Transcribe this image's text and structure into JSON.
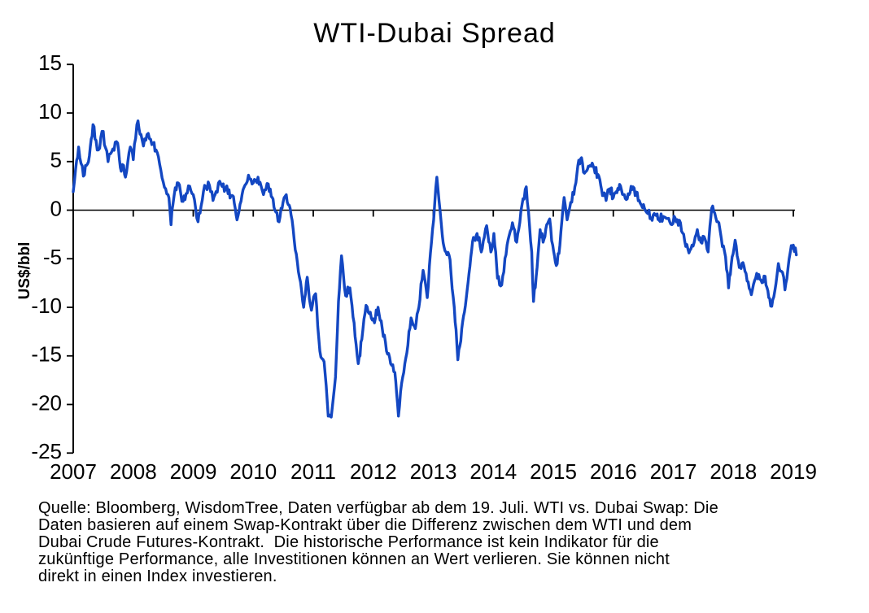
{
  "page": {
    "background": "#ffffff",
    "text_color": "#000000"
  },
  "chart_data": {
    "type": "line",
    "title": "WTI-Dubai Spread",
    "ylabel": "US$/bbl",
    "xlabel": "",
    "ylim": [
      -25,
      15
    ],
    "xlim": [
      2007,
      2019.1
    ],
    "y_ticks": [
      15,
      10,
      5,
      0,
      -5,
      -10,
      -15,
      -20,
      -25
    ],
    "x_ticks": [
      2007,
      2008,
      2009,
      2010,
      2011,
      2012,
      2013,
      2014,
      2015,
      2016,
      2017,
      2018,
      2019
    ],
    "grid": false,
    "legend": "none",
    "axis_color": "#000000",
    "series": [
      {
        "name": "WTI-Dubai Spread (US$/bbl)",
        "color": "#1347C2",
        "x": [
          2007.0,
          2007.04,
          2007.09,
          2007.13,
          2007.17,
          2007.22,
          2007.27,
          2007.33,
          2007.38,
          2007.42,
          2007.46,
          2007.5,
          2007.54,
          2007.58,
          2007.62,
          2007.66,
          2007.7,
          2007.74,
          2007.77,
          2007.8,
          2007.84,
          2007.87,
          2007.91,
          2007.95,
          2008.0,
          2008.04,
          2008.08,
          2008.13,
          2008.17,
          2008.21,
          2008.25,
          2008.29,
          2008.33,
          2008.38,
          2008.42,
          2008.46,
          2008.5,
          2008.54,
          2008.58,
          2008.61,
          2008.63,
          2008.66,
          2008.7,
          2008.75,
          2008.79,
          2008.83,
          2008.88,
          2008.92,
          2008.96,
          2009.0,
          2009.04,
          2009.08,
          2009.13,
          2009.17,
          2009.21,
          2009.25,
          2009.29,
          2009.33,
          2009.38,
          2009.42,
          2009.46,
          2009.5,
          2009.54,
          2009.58,
          2009.63,
          2009.67,
          2009.7,
          2009.73,
          2009.78,
          2009.83,
          2009.88,
          2009.92,
          2009.96,
          2010.0,
          2010.04,
          2010.08,
          2010.13,
          2010.17,
          2010.21,
          2010.25,
          2010.3,
          2010.36,
          2010.43,
          2010.48,
          2010.55,
          2010.6,
          2010.63,
          2010.7,
          2010.77,
          2010.84,
          2010.9,
          2010.97,
          2011.04,
          2011.11,
          2011.18,
          2011.25,
          2011.3,
          2011.37,
          2011.42,
          2011.47,
          2011.54,
          2011.61,
          2011.68,
          2011.75,
          2011.81,
          2011.88,
          2011.95,
          2012.02,
          2012.08,
          2012.15,
          2012.22,
          2012.29,
          2012.36,
          2012.42,
          2012.49,
          2012.56,
          2012.63,
          2012.7,
          2012.76,
          2012.83,
          2012.9,
          2012.97,
          2013.06,
          2013.15,
          2013.21,
          2013.28,
          2013.35,
          2013.41,
          2013.49,
          2013.55,
          2013.61,
          2013.67,
          2013.73,
          2013.8,
          2013.85,
          2013.89,
          2013.96,
          2014.01,
          2014.07,
          2014.14,
          2014.23,
          2014.32,
          2014.39,
          2014.46,
          2014.55,
          2014.64,
          2014.67,
          2014.73,
          2014.78,
          2014.83,
          2014.89,
          2014.94,
          2014.99,
          2015.05,
          2015.11,
          2015.18,
          2015.23,
          2015.29,
          2015.36,
          2015.41,
          2015.47,
          2015.52,
          2015.6,
          2015.68,
          2015.76,
          2015.82,
          2015.88,
          2015.94,
          2016.0,
          2016.06,
          2016.12,
          2016.2,
          2016.28,
          2016.33,
          2016.45,
          2016.54,
          2016.63,
          2016.7,
          2016.76,
          2016.85,
          2016.94,
          2017.03,
          2017.12,
          2017.19,
          2017.26,
          2017.33,
          2017.4,
          2017.46,
          2017.53,
          2017.58,
          2017.64,
          2017.69,
          2017.76,
          2017.8,
          2017.87,
          2017.92,
          2017.98,
          2018.03,
          2018.1,
          2018.16,
          2018.23,
          2018.3,
          2018.39,
          2018.46,
          2018.53,
          2018.59,
          2018.64,
          2018.71,
          2018.75,
          2018.82,
          2018.86,
          2018.91,
          2018.95,
          2019.0,
          2019.05
        ],
        "y": [
          1.9,
          4.2,
          6.5,
          4.8,
          3.5,
          4.6,
          5.6,
          8.8,
          7.2,
          6.2,
          7.5,
          8.1,
          6.4,
          5.0,
          5.8,
          6.3,
          7.0,
          6.9,
          5.2,
          4.0,
          4.6,
          3.4,
          5.0,
          6.5,
          5.2,
          7.4,
          9.2,
          7.8,
          6.6,
          7.2,
          7.9,
          7.3,
          6.9,
          6.2,
          5.5,
          4.1,
          2.9,
          2.2,
          1.6,
          0.2,
          -1.5,
          0.5,
          2.3,
          2.8,
          1.8,
          0.9,
          1.7,
          2.5,
          2.0,
          1.6,
          0.2,
          -1.2,
          0.4,
          1.9,
          2.4,
          2.9,
          1.9,
          1.0,
          1.9,
          2.8,
          2.7,
          2.7,
          2.2,
          1.7,
          1.5,
          1.4,
          0.2,
          -1.0,
          0.6,
          2.1,
          2.7,
          3.6,
          3.2,
          2.8,
          3.1,
          3.4,
          2.5,
          1.6,
          2.1,
          2.7,
          1.4,
          0.0,
          -1.2,
          0.2,
          1.6,
          0.5,
          -0.5,
          -4.1,
          -6.9,
          -10.0,
          -6.9,
          -10.3,
          -8.6,
          -14.5,
          -15.6,
          -21.2,
          -21.3,
          -17.2,
          -9.4,
          -4.7,
          -8.8,
          -8.0,
          -11.6,
          -15.8,
          -13.3,
          -9.8,
          -10.5,
          -11.6,
          -10.0,
          -12.2,
          -14.5,
          -15.8,
          -16.7,
          -21.2,
          -17.2,
          -14.7,
          -11.1,
          -12.2,
          -10.0,
          -6.2,
          -9.0,
          -3.3,
          3.4,
          -2.6,
          -4.3,
          -5.1,
          -10.0,
          -15.4,
          -11.5,
          -9.0,
          -5.8,
          -2.8,
          -2.4,
          -4.3,
          -2.8,
          -1.6,
          -4.3,
          -2.4,
          -7.0,
          -7.7,
          -3.6,
          -1.3,
          -3.3,
          -0.1,
          2.4,
          -4.3,
          -9.4,
          -5.9,
          -2.0,
          -3.3,
          -1.5,
          -0.9,
          -3.6,
          -5.7,
          -3.6,
          1.3,
          -1.0,
          0.8,
          2.4,
          4.6,
          5.4,
          3.8,
          4.5,
          4.3,
          3.5,
          1.5,
          1.0,
          2.2,
          1.3,
          1.8,
          2.5,
          1.2,
          1.8,
          2.4,
          0.7,
          -0.1,
          -0.8,
          -0.5,
          -1.0,
          -0.7,
          -1.2,
          -0.8,
          -1.3,
          -3.2,
          -4.4,
          -3.7,
          -2.0,
          -3.3,
          -3.0,
          -4.3,
          0.2,
          -0.3,
          -1.3,
          -2.9,
          -4.8,
          -8.0,
          -4.8,
          -3.1,
          -5.9,
          -5.4,
          -7.3,
          -8.7,
          -6.5,
          -7.2,
          -6.8,
          -9.0,
          -9.9,
          -7.6,
          -5.5,
          -6.4,
          -8.2,
          -6.0,
          -4.3,
          -3.6,
          -4.6
        ]
      }
    ],
    "render_hints": {
      "line_width": 3.4,
      "noise_amplitude": 0.55,
      "samples_per_year": 60,
      "noise_seed": 42
    }
  },
  "footer": {
    "lines": [
      "Quelle: Bloomberg, WisdomTree, Daten verfügbar ab dem 19. Juli. WTI vs. Dubai Swap: Die",
      "Daten basieren auf einem Swap-Kontrakt über die Differenz zwischen dem WTI und dem",
      "Dubai Crude Futures-Kontrakt.  Die historische Performance ist kein Indikator für die",
      "zukünftige Performance, alle Investitionen können an Wert verlieren. Sie können nicht",
      "direkt in einen Index investieren."
    ]
  }
}
